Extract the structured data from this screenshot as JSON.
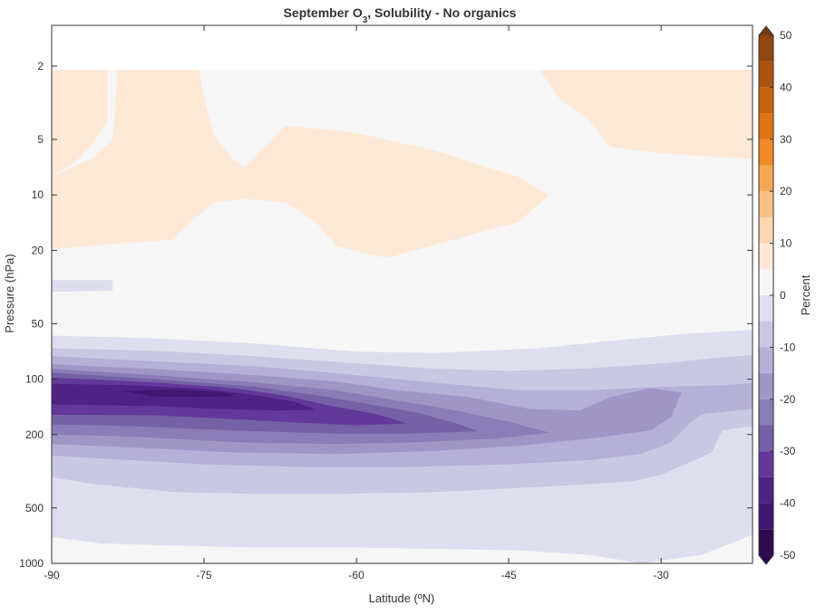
{
  "chart_data": {
    "type": "contour",
    "title": "September O",
    "title_sub": "3",
    "title_rest": ", Solubility - No organics",
    "xlabel": "Latitude (ºN)",
    "ylabel": "Pressure (hPa)",
    "xlim": [
      -90,
      -21
    ],
    "ylim_hPa": [
      1000,
      1.3
    ],
    "y_scale": "log",
    "y_reversed": true,
    "x_ticks": [
      "-90",
      "-75",
      "-60",
      "-45",
      "-30"
    ],
    "x_tick_values": [
      -90,
      -75,
      -60,
      -45,
      -30
    ],
    "y_ticks": [
      "2",
      "5",
      "10",
      "20",
      "50",
      "100",
      "200",
      "500",
      "1000"
    ],
    "y_tick_values": [
      2,
      5,
      10,
      20,
      50,
      100,
      200,
      500,
      1000
    ],
    "colorbar": {
      "label": "Percent",
      "ticks": [
        "50",
        "40",
        "30",
        "20",
        "10",
        "0",
        "-10",
        "-20",
        "-30",
        "-40",
        "-50"
      ],
      "tick_values": [
        50,
        40,
        30,
        20,
        10,
        0,
        -10,
        -20,
        -30,
        -40,
        -50
      ],
      "levels": [
        -50,
        -45,
        -40,
        -35,
        -30,
        -25,
        -20,
        -15,
        -10,
        -5,
        0,
        5,
        10,
        15,
        20,
        25,
        30,
        35,
        40,
        45,
        50
      ],
      "colors": [
        "#2d0a4e",
        "#3f1670",
        "#4f2286",
        "#62389a",
        "#7561a5",
        "#8a7cb6",
        "#9f96c6",
        "#b5b0d6",
        "#c9c8e3",
        "#dedfee",
        "#f6f6f6",
        "#fde9d6",
        "#fbd6ae",
        "#f9c083",
        "#f5a853",
        "#f08a25",
        "#de7412",
        "#c8630d",
        "#ac530d",
        "#8f4610",
        "#743a14"
      ],
      "extend": "both"
    },
    "contours": [
      {
        "level": 0,
        "color": "#fde9d6",
        "regions": [
          [
            [
              -90,
              2
            ],
            [
              -84.5,
              2
            ],
            [
              -84.5,
              4
            ],
            [
              -86,
              5.3
            ],
            [
              -87.5,
              6.5
            ],
            [
              -90,
              8
            ]
          ],
          [
            [
              -83.5,
              2
            ],
            [
              -75.5,
              2
            ],
            [
              -75,
              3
            ],
            [
              -74,
              4.8
            ],
            [
              -72,
              6.5
            ],
            [
              -71,
              7
            ],
            [
              -67,
              4.2
            ],
            [
              -60,
              4.6
            ],
            [
              -52,
              5.8
            ],
            [
              -44,
              8
            ],
            [
              -41,
              10
            ],
            [
              -44,
              14
            ],
            [
              -52,
              18.5
            ],
            [
              -57,
              22
            ],
            [
              -62,
              19
            ],
            [
              -64,
              14
            ],
            [
              -67,
              11
            ],
            [
              -71,
              10.5
            ],
            [
              -74,
              11
            ],
            [
              -76,
              13.5
            ],
            [
              -78,
              17.5
            ],
            [
              -84,
              18.5
            ],
            [
              -88,
              19.3
            ],
            [
              -90,
              19.4
            ],
            [
              -90,
              8
            ],
            [
              -86,
              6.3
            ],
            [
              -84,
              5
            ]
          ],
          [
            [
              -42,
              2
            ],
            [
              -21,
              2
            ],
            [
              -21,
              6.4
            ],
            [
              -29,
              6
            ],
            [
              -35,
              5.5
            ],
            [
              -37,
              4
            ],
            [
              -40,
              3
            ]
          ]
        ]
      },
      {
        "level": -5,
        "color": "#dedfee",
        "regions": [
          [
            [
              -90,
              29
            ],
            [
              -84,
              29
            ],
            [
              -84,
              33
            ],
            [
              -88,
              33.5
            ],
            [
              -90,
              33.5
            ]
          ],
          [
            [
              -90,
              58
            ],
            [
              -80,
              60
            ],
            [
              -70,
              64
            ],
            [
              -60,
              71
            ],
            [
              -52,
              72
            ],
            [
              -42,
              68
            ],
            [
              -35,
              62
            ],
            [
              -28,
              57
            ],
            [
              -21,
              54
            ],
            [
              -21,
              700
            ],
            [
              -26,
              900
            ],
            [
              -32,
              1000
            ],
            [
              -37,
              900
            ],
            [
              -44,
              850
            ],
            [
              -60,
              820
            ],
            [
              -70,
              820
            ],
            [
              -78,
              800
            ],
            [
              -85,
              780
            ],
            [
              -90,
              720
            ]
          ]
        ]
      },
      {
        "level": -10,
        "color": "#c9c8e3",
        "regions": [
          [
            [
              -90,
              68
            ],
            [
              -80,
              70
            ],
            [
              -70,
              75
            ],
            [
              -60,
              82
            ],
            [
              -52,
              88
            ],
            [
              -45,
              90
            ],
            [
              -38,
              88
            ],
            [
              -30,
              82
            ],
            [
              -25,
              77
            ],
            [
              -21,
              74
            ],
            [
              -21,
              180
            ],
            [
              -24,
              190
            ],
            [
              -25,
              250
            ],
            [
              -27,
              280
            ],
            [
              -30,
              330
            ],
            [
              -33,
              360
            ],
            [
              -40,
              380
            ],
            [
              -52,
              410
            ],
            [
              -62,
              420
            ],
            [
              -70,
              420
            ],
            [
              -78,
              410
            ],
            [
              -86,
              370
            ],
            [
              -90,
              340
            ]
          ]
        ]
      },
      {
        "level": -15,
        "color": "#b5b0d6",
        "regions": [
          [
            [
              -90,
              75
            ],
            [
              -80,
              80
            ],
            [
              -70,
              85
            ],
            [
              -60,
              95
            ],
            [
              -52,
              105
            ],
            [
              -44,
              115
            ],
            [
              -37,
              115
            ],
            [
              -30,
              110
            ],
            [
              -24,
              108
            ],
            [
              -21,
              105
            ],
            [
              -21,
              145
            ],
            [
              -26,
              155
            ],
            [
              -27,
              170
            ],
            [
              -29,
              220
            ],
            [
              -32,
              255
            ],
            [
              -37,
              275
            ],
            [
              -45,
              290
            ],
            [
              -55,
              300
            ],
            [
              -65,
              300
            ],
            [
              -75,
              290
            ],
            [
              -85,
              270
            ],
            [
              -90,
              260
            ]
          ]
        ]
      },
      {
        "level": -20,
        "color": "#9f96c6",
        "regions": [
          [
            [
              -90,
              83
            ],
            [
              -80,
              88
            ],
            [
              -70,
              95
            ],
            [
              -62,
              103
            ],
            [
              -56,
              115
            ],
            [
              -49,
              125
            ],
            [
              -43,
              145
            ],
            [
              -38,
              148
            ],
            [
              -35,
              125
            ],
            [
              -31,
              112
            ],
            [
              -28,
              118
            ],
            [
              -29,
              160
            ],
            [
              -31,
              190
            ],
            [
              -37,
              210
            ],
            [
              -44,
              230
            ],
            [
              -52,
              245
            ],
            [
              -62,
              255
            ],
            [
              -72,
              250
            ],
            [
              -82,
              235
            ],
            [
              -90,
              225
            ]
          ]
        ]
      },
      {
        "level": -25,
        "color": "#8a7cb6",
        "regions": [
          [
            [
              -90,
              88
            ],
            [
              -80,
              95
            ],
            [
              -70,
              104
            ],
            [
              -62,
              115
            ],
            [
              -57,
              128
            ],
            [
              -51,
              145
            ],
            [
              -45,
              170
            ],
            [
              -41,
              195
            ],
            [
              -46,
              210
            ],
            [
              -54,
              220
            ],
            [
              -62,
              225
            ],
            [
              -72,
              220
            ],
            [
              -82,
              205
            ],
            [
              -90,
              200
            ]
          ]
        ]
      },
      {
        "level": -30,
        "color": "#7561a5",
        "regions": [
          [
            [
              -90,
              92
            ],
            [
              -80,
              100
            ],
            [
              -70,
              110
            ],
            [
              -64,
              122
            ],
            [
              -59,
              136
            ],
            [
              -54,
              152
            ],
            [
              -50,
              175
            ],
            [
              -48,
              192
            ],
            [
              -55,
              198
            ],
            [
              -62,
              198
            ],
            [
              -72,
              190
            ],
            [
              -82,
              180
            ],
            [
              -90,
              176
            ]
          ]
        ]
      },
      {
        "level": -35,
        "color": "#62389a",
        "regions": [
          [
            [
              -90,
              98
            ],
            [
              -80,
              104
            ],
            [
              -72,
              112
            ],
            [
              -67,
              123
            ],
            [
              -63,
              138
            ],
            [
              -58,
              155
            ],
            [
              -55,
              174
            ],
            [
              -60,
              178
            ],
            [
              -66,
              172
            ],
            [
              -72,
              165
            ],
            [
              -80,
              157
            ],
            [
              -90,
              156
            ]
          ]
        ]
      },
      {
        "level": -40,
        "color": "#4f2286",
        "regions": [
          [
            [
              -90,
              106
            ],
            [
              -82,
              108
            ],
            [
              -75,
              113
            ],
            [
              -70,
              122
            ],
            [
              -66,
              133
            ],
            [
              -64,
              147
            ],
            [
              -68,
              148
            ],
            [
              -74,
              145
            ],
            [
              -80,
              140
            ],
            [
              -90,
              137
            ]
          ]
        ]
      },
      {
        "level": -45,
        "color": "#3f1670",
        "regions": [
          [
            [
              -83,
              116
            ],
            [
              -78,
              114
            ],
            [
              -73,
              118
            ],
            [
              -72,
              124
            ],
            [
              -76,
              125
            ],
            [
              -80,
              124
            ]
          ]
        ]
      }
    ]
  }
}
